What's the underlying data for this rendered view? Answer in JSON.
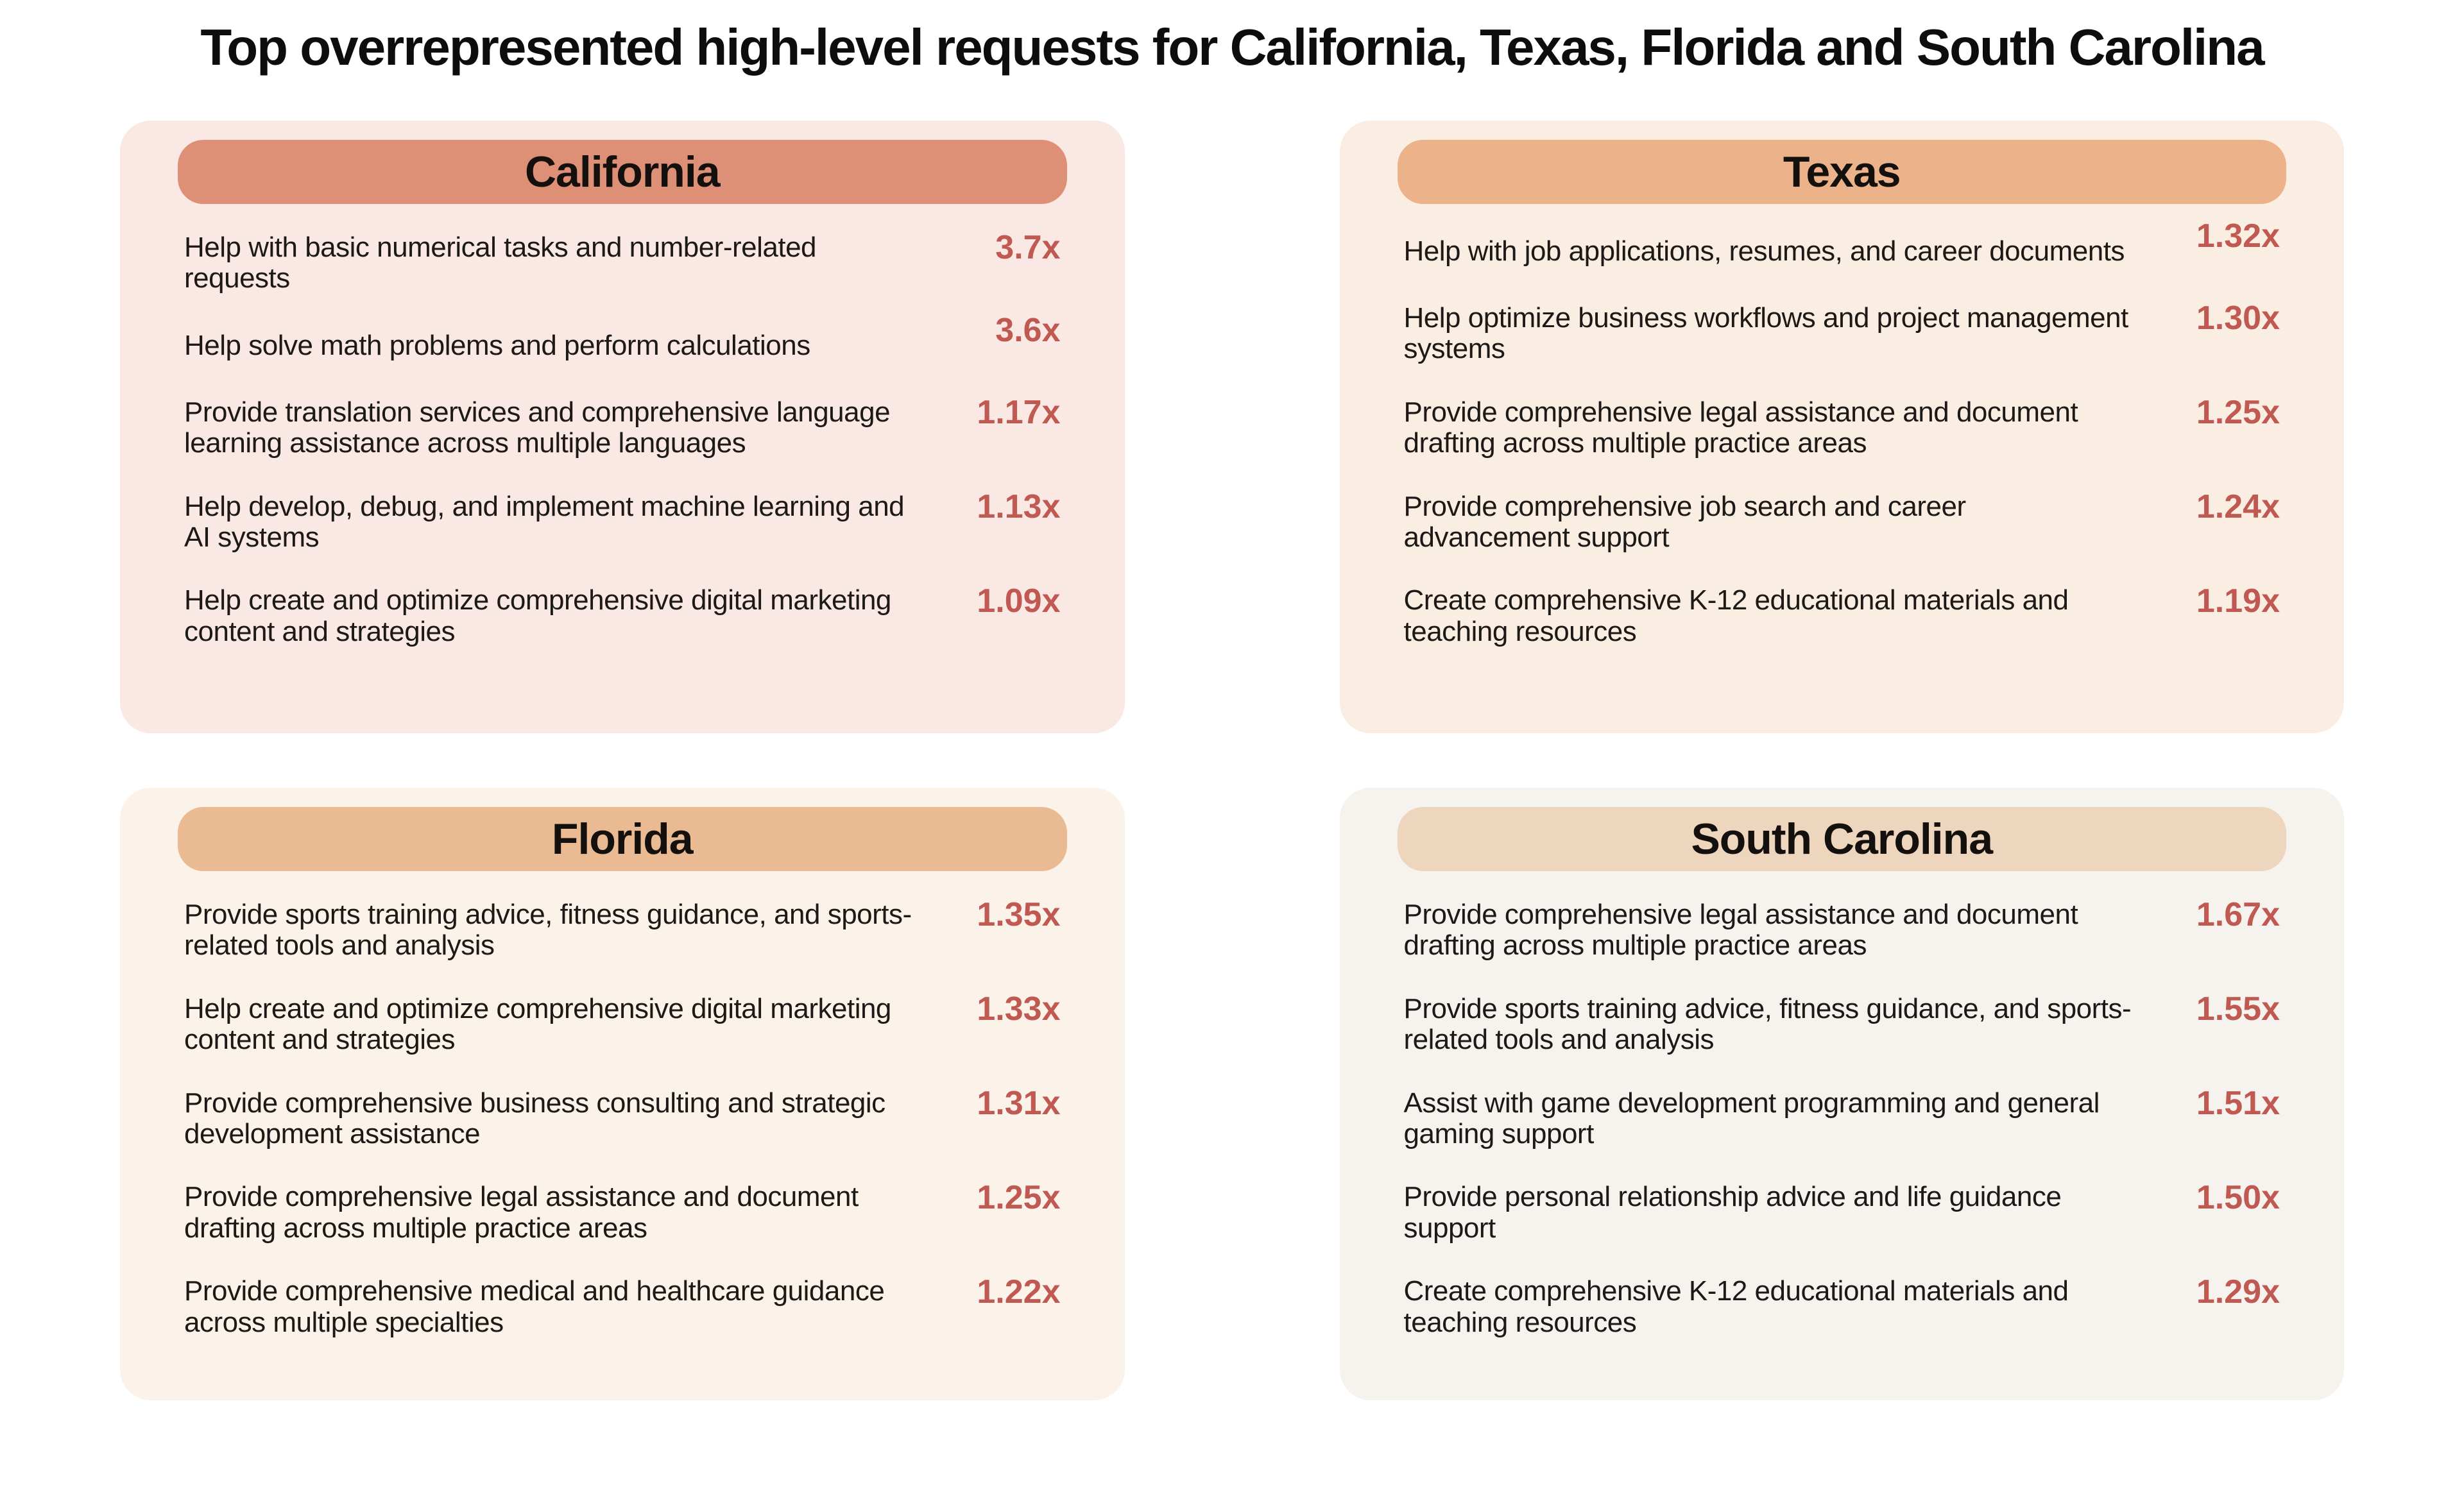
{
  "page": {
    "title": "Top overrepresented high-level requests for California, Texas, Florida and South Carolina"
  },
  "colors": {
    "page_background": "#FFFFFF",
    "multiplier_text": "#BF5951",
    "body_text": "#1C1917",
    "title_text": "#0E0D0C"
  },
  "panels": [
    {
      "title": "California",
      "header_color": "#DE9077",
      "panel_color": "#F9E8E3",
      "items": [
        {
          "text": "Help with basic numerical tasks and number-related requests",
          "multiplier": "3.7x"
        },
        {
          "text": "Help solve math problems and perform calculations",
          "multiplier": "3.6x"
        },
        {
          "text": "Provide translation services and comprehensive language learning assistance across multiple languages",
          "multiplier": "1.17x"
        },
        {
          "text": "Help develop, debug, and implement machine learning and AI systems",
          "multiplier": "1.13x"
        },
        {
          "text": "Help create and optimize comprehensive digital marketing content and strategies",
          "multiplier": "1.09x"
        }
      ]
    },
    {
      "title": "Texas",
      "header_color": "#ECB28A",
      "panel_color": "#FAEDE2",
      "items": [
        {
          "text": "Help with job applications, resumes, and career documents",
          "multiplier": "1.32x"
        },
        {
          "text": "Help optimize business workflows and project management systems",
          "multiplier": "1.30x"
        },
        {
          "text": "Provide comprehensive legal assistance and document drafting across multiple practice areas",
          "multiplier": "1.25x"
        },
        {
          "text": "Provide comprehensive job search and career advancement support",
          "multiplier": "1.24x"
        },
        {
          "text": "Create comprehensive K-12 educational materials and teaching resources",
          "multiplier": "1.19x"
        }
      ]
    },
    {
      "title": "Florida",
      "header_color": "#EABB93",
      "panel_color": "#FBF2EA",
      "items": [
        {
          "text": "Provide sports training advice, fitness guidance, and sports-related tools and analysis",
          "multiplier": "1.35x"
        },
        {
          "text": "Help create and optimize comprehensive digital marketing content and strategies",
          "multiplier": "1.33x"
        },
        {
          "text": "Provide comprehensive business consulting and strategic development assistance",
          "multiplier": "1.31x"
        },
        {
          "text": "Provide comprehensive legal assistance and document drafting across multiple practice areas",
          "multiplier": "1.25x"
        },
        {
          "text": "Provide comprehensive medical and healthcare guidance across multiple specialties",
          "multiplier": "1.22x"
        }
      ]
    },
    {
      "title": "South Carolina",
      "header_color": "#EDD5BE",
      "panel_color": "#F6F2ED",
      "items": [
        {
          "text": "Provide comprehensive legal assistance and document drafting across multiple practice areas",
          "multiplier": "1.67x"
        },
        {
          "text": "Provide sports training advice, fitness guidance, and sports-related tools and analysis",
          "multiplier": "1.55x"
        },
        {
          "text": "Assist with game development programming and general gaming support",
          "multiplier": "1.51x"
        },
        {
          "text": "Provide personal relationship advice and life guidance support",
          "multiplier": "1.50x"
        },
        {
          "text": "Create comprehensive K-12 educational materials and teaching resources",
          "multiplier": "1.29x"
        }
      ]
    }
  ],
  "chart_data": {
    "type": "table",
    "title": "Top overrepresented high-level requests for California, Texas, Florida and South Carolina",
    "legend_position": "none",
    "groups": [
      {
        "state": "California",
        "categories": [
          "Help with basic numerical tasks and number-related requests",
          "Help solve math problems and perform calculations",
          "Provide translation services and comprehensive language learning assistance across multiple languages",
          "Help develop, debug, and implement machine learning and AI systems",
          "Help create and optimize comprehensive digital marketing content and strategies"
        ],
        "values": [
          3.7,
          3.6,
          1.17,
          1.13,
          1.09
        ],
        "value_suffix": "x"
      },
      {
        "state": "Texas",
        "categories": [
          "Help with job applications, resumes, and career documents",
          "Help optimize business workflows and project management systems",
          "Provide comprehensive legal assistance and document drafting across multiple practice areas",
          "Provide comprehensive job search and career advancement support",
          "Create comprehensive K-12 educational materials and teaching resources"
        ],
        "values": [
          1.32,
          1.3,
          1.25,
          1.24,
          1.19
        ],
        "value_suffix": "x"
      },
      {
        "state": "Florida",
        "categories": [
          "Provide sports training advice, fitness guidance, and sports-related tools and analysis",
          "Help create and optimize comprehensive digital marketing content and strategies",
          "Provide comprehensive business consulting and strategic development assistance",
          "Provide comprehensive legal assistance and document drafting across multiple practice areas",
          "Provide comprehensive medical and healthcare guidance across multiple specialties"
        ],
        "values": [
          1.35,
          1.33,
          1.31,
          1.25,
          1.22
        ],
        "value_suffix": "x"
      },
      {
        "state": "South Carolina",
        "categories": [
          "Provide comprehensive legal assistance and document drafting across multiple practice areas",
          "Provide sports training advice, fitness guidance, and sports-related tools and analysis",
          "Assist with game development programming and general gaming support",
          "Provide personal relationship advice and life guidance support",
          "Create comprehensive K-12 educational materials and teaching resources"
        ],
        "values": [
          1.67,
          1.55,
          1.51,
          1.5,
          1.29
        ],
        "value_suffix": "x"
      }
    ]
  }
}
